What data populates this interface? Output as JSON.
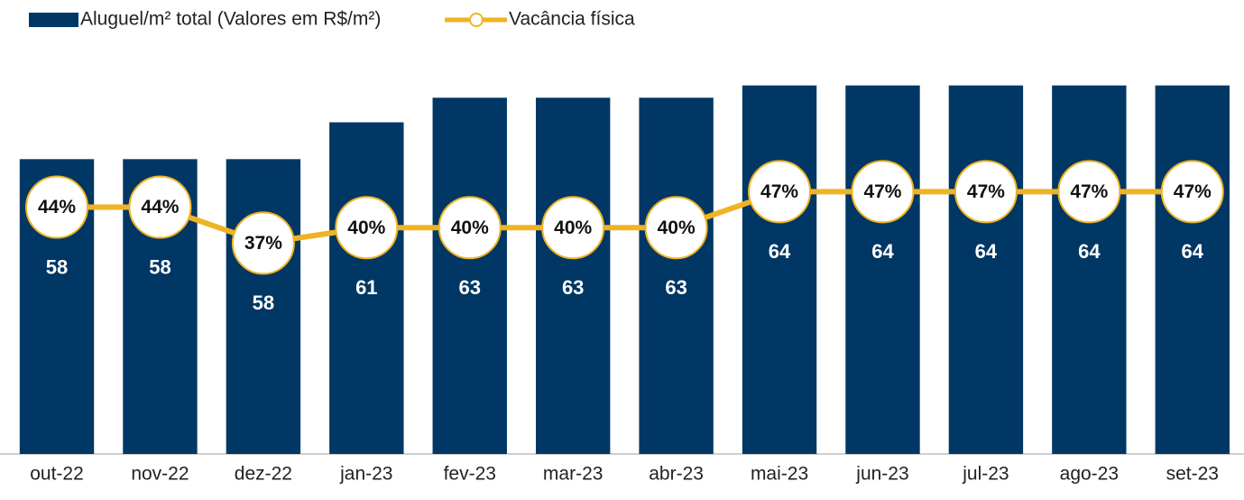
{
  "chart_data": {
    "type": "bar",
    "categories": [
      "out-22",
      "nov-22",
      "dez-22",
      "jan-23",
      "fev-23",
      "mar-23",
      "abr-23",
      "mai-23",
      "jun-23",
      "jul-23",
      "ago-23",
      "set-23"
    ],
    "series": [
      {
        "name": "Aluguel/m² total (Valores em R$/m²)",
        "color": "#003764",
        "axis": "y",
        "type": "bar",
        "values": [
          58,
          58,
          58,
          61,
          63,
          63,
          63,
          64,
          64,
          64,
          64,
          64
        ]
      },
      {
        "name": "Vacância física",
        "color": "#f0b323",
        "axis": "y2",
        "type": "line",
        "values": [
          44,
          44,
          37,
          40,
          40,
          40,
          40,
          47,
          47,
          47,
          47,
          47
        ],
        "value_labels": [
          "44%",
          "44%",
          "37%",
          "40%",
          "40%",
          "40%",
          "40%",
          "47%",
          "47%",
          "47%",
          "47%",
          "47%"
        ]
      }
    ],
    "ylim": [
      34,
      70
    ],
    "y2lim": [
      -4,
      82
    ],
    "legend": "top-left"
  }
}
